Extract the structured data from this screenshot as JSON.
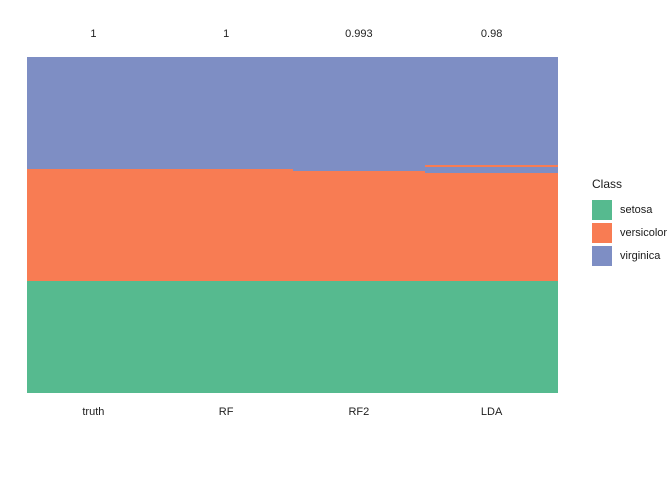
{
  "chart_data": {
    "type": "bar",
    "subtype": "stacked-class-prediction-columns",
    "title": "",
    "total_samples_per_column": 150,
    "class_colors": {
      "setosa": "#56BA8F",
      "versicolor": "#F87C53",
      "virginica": "#7E8EC4"
    },
    "columns": [
      {
        "label": "truth",
        "accuracy_label": "1",
        "segments_top_to_bottom": [
          {
            "class": "virginica",
            "count": 50
          },
          {
            "class": "versicolor",
            "count": 50
          },
          {
            "class": "setosa",
            "count": 50
          }
        ]
      },
      {
        "label": "RF",
        "accuracy_label": "1",
        "segments_top_to_bottom": [
          {
            "class": "virginica",
            "count": 50
          },
          {
            "class": "versicolor",
            "count": 50
          },
          {
            "class": "setosa",
            "count": 50
          }
        ]
      },
      {
        "label": "RF2",
        "accuracy_label": "0.993",
        "segments_top_to_bottom": [
          {
            "class": "virginica",
            "count": 51
          },
          {
            "class": "versicolor",
            "count": 49
          },
          {
            "class": "setosa",
            "count": 50
          }
        ]
      },
      {
        "label": "LDA",
        "accuracy_label": "0.98",
        "segments_top_to_bottom": [
          {
            "class": "virginica",
            "count": 48
          },
          {
            "class": "versicolor",
            "count": 1
          },
          {
            "class": "virginica",
            "count": 3
          },
          {
            "class": "versicolor",
            "count": 48
          },
          {
            "class": "setosa",
            "count": 50
          }
        ]
      }
    ],
    "legend": {
      "title": "Class",
      "position": "right",
      "items": [
        {
          "label": "setosa",
          "color": "#56BA8F"
        },
        {
          "label": "versicolor",
          "color": "#F87C53"
        },
        {
          "label": "virginica",
          "color": "#7E8EC4"
        }
      ]
    }
  }
}
